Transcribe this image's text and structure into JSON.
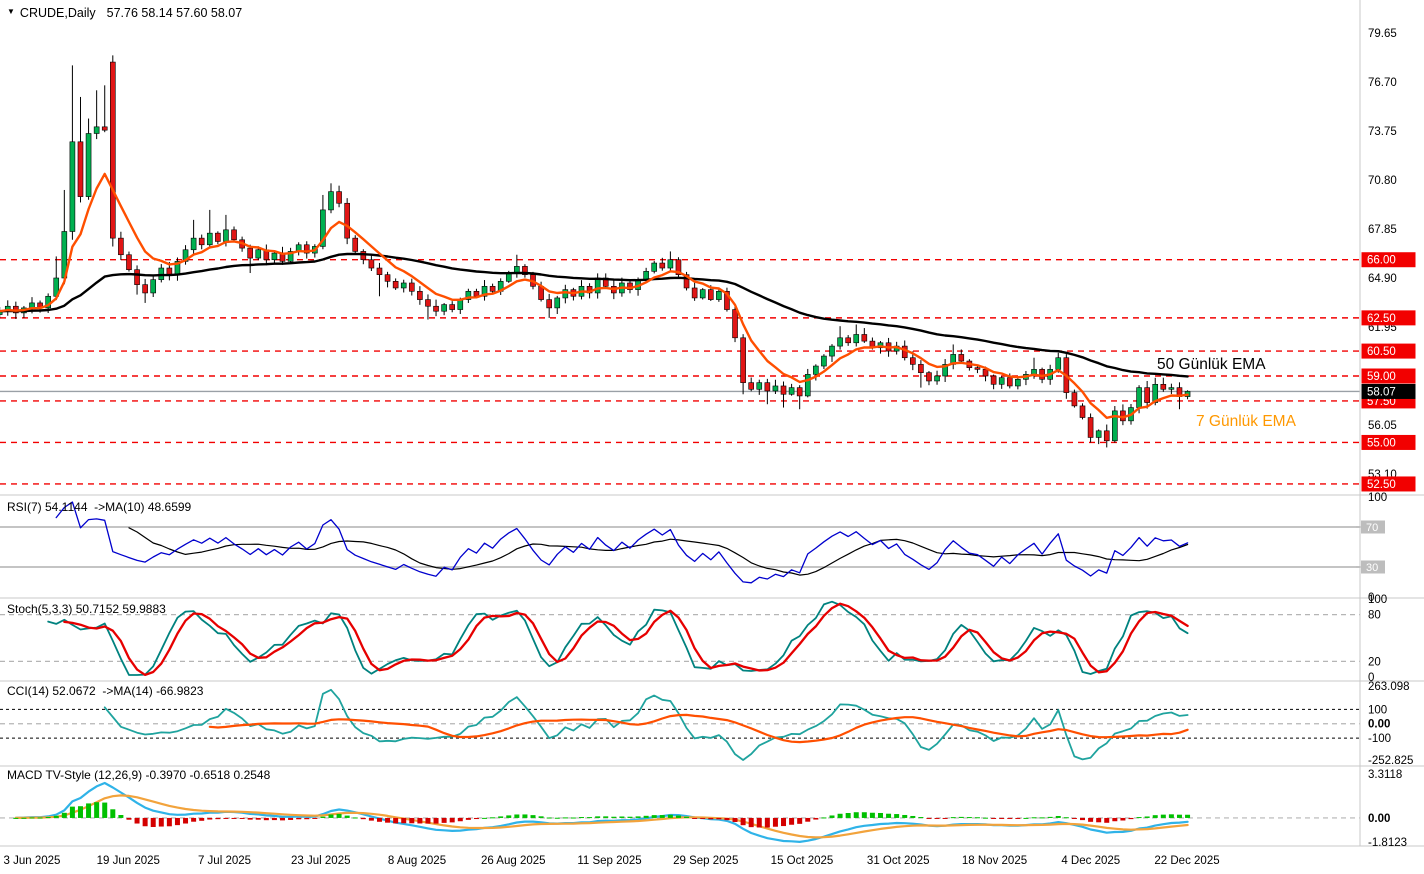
{
  "window": {
    "title_symbol": "CRUDE,Daily",
    "title_ohlc": "57.76 58.14 57.60 58.07"
  },
  "headers": {
    "rsi": "RSI(7) 54.1144  ->MA(10) 48.6599",
    "stoch": "Stoch(5,3,3) 50.7152 59.9883",
    "cci": "CCI(14) 52.0672  ->MA(14) -66.9823",
    "macd": "MACD TV-Style (12,26,9) -0.3970 -0.6518 0.2548"
  },
  "overlay_labels": {
    "ema50": "50 Günlük EMA",
    "ema7": "7 Günlük EMA"
  },
  "colors": {
    "background": "#ffffff",
    "bull_candle": "#00b050",
    "bear_candle": "#e01515",
    "candle_outline": "#000000",
    "ema7": "#ff4f00",
    "ema50": "#000000",
    "level_line": "#f20000",
    "bid_line": "#9aa0a6",
    "axis_badge_red": "#f20000",
    "axis_badge_black": "#000000",
    "axis_badge_gray": "#bdbdbd",
    "rsi_line": "#0000cd",
    "rsi_ma": "#000000",
    "stoch_k": "#00827f",
    "stoch_d": "#e60000",
    "cci_line": "#1fa39e",
    "cci_ma": "#ff4f00",
    "macd_line": "#2fb3e8",
    "macd_signal": "#f2a33c",
    "hist_up": "#00c000",
    "hist_down": "#d40000",
    "separator": "#c8c8c8",
    "guide_gray": "#c4c4c4",
    "guide_dash": "#b5b5b5",
    "text": "#000000"
  },
  "chart_data": {
    "type": "candlestick",
    "symbol": "CRUDE",
    "timeframe": "Daily",
    "last_candle_ohlc": [
      57.76,
      58.14,
      57.6,
      58.07
    ],
    "price_axis": {
      "plain_ticks": [
        79.65,
        76.7,
        73.75,
        70.8,
        67.85,
        64.9,
        61.95,
        56.05,
        53.1
      ],
      "red_level_ticks": [
        66.0,
        62.5,
        60.5,
        59.0,
        57.5,
        55.0,
        52.5
      ],
      "bid_tick": 58.07
    },
    "x_axis_dates": [
      "3 Jun 2025",
      "19 Jun 2025",
      "7 Jul 2025",
      "23 Jul 2025",
      "8 Aug 2025",
      "26 Aug 2025",
      "11 Sep 2025",
      "29 Sep 2025",
      "15 Oct 2025",
      "31 Oct 2025",
      "18 Nov 2025",
      "4 Dec 2025",
      "22 Dec 2025"
    ],
    "overlays": [
      {
        "label": "50 Günlük EMA",
        "period": 50,
        "color": "#000000"
      },
      {
        "label": "7 Günlük EMA",
        "period": 7,
        "color": "#ff4f00"
      }
    ],
    "candles": {
      "closes": [
        62.9,
        63.2,
        62.8,
        63.1,
        63.4,
        63.1,
        63.8,
        64.9,
        67.7,
        73.1,
        69.8,
        73.6,
        74.0,
        73.8,
        67.3,
        66.3,
        65.4,
        64.5,
        64.0,
        64.8,
        65.5,
        65.1,
        65.9,
        66.6,
        67.3,
        66.9,
        67.6,
        67.1,
        67.8,
        67.2,
        66.7,
        66.1,
        66.6,
        66.0,
        66.4,
        65.9,
        66.5,
        66.9,
        66.4,
        66.8,
        69.0,
        70.1,
        69.4,
        67.3,
        66.5,
        66.0,
        65.5,
        65.1,
        64.7,
        64.3,
        64.6,
        64.1,
        63.6,
        63.2,
        62.9,
        63.3,
        63.0,
        63.6,
        64.1,
        63.8,
        64.4,
        64.1,
        64.7,
        65.2,
        65.6,
        65.1,
        64.4,
        63.6,
        63.1,
        63.7,
        64.2,
        63.8,
        64.4,
        64.0,
        64.9,
        64.4,
        64.0,
        64.6,
        64.2,
        64.8,
        65.3,
        65.8,
        65.5,
        66.0,
        65.1,
        64.3,
        63.7,
        64.2,
        63.6,
        64.1,
        63.0,
        61.3,
        58.6,
        58.2,
        58.6,
        58.1,
        58.4,
        57.9,
        58.3,
        57.8,
        59.1,
        59.6,
        60.2,
        60.8,
        61.3,
        61.0,
        61.5,
        61.1,
        60.7,
        61.0,
        60.5,
        60.8,
        60.1,
        59.7,
        59.2,
        58.7,
        59.0,
        59.7,
        60.3,
        59.9,
        59.5,
        59.4,
        59.0,
        58.5,
        58.9,
        58.4,
        58.8,
        59.1,
        59.4,
        58.8,
        59.4,
        60.1,
        58.0,
        57.2,
        56.5,
        55.3,
        55.7,
        55.1,
        56.9,
        56.3,
        57.1,
        58.3,
        57.4,
        58.5,
        58.2,
        58.3,
        57.76,
        58.07
      ],
      "open_overrides": {
        "0": 62.7,
        "14": 77.9
      },
      "high_overrides": {
        "7": 66.2,
        "8": 70.2,
        "9": 77.7,
        "10": 75.8,
        "11": 74.5,
        "12": 76.2,
        "13": 76.5,
        "14": 78.3,
        "24": 68.4,
        "26": 69.0,
        "28": 68.7,
        "40": 69.9,
        "41": 70.6,
        "64": 66.3,
        "83": 66.5,
        "104": 62.0,
        "106": 62.1,
        "118": 60.9,
        "128": 60.1,
        "131": 60.4,
        "144": 58.9,
        "147": 58.14
      },
      "low_overrides": {
        "9": 67.2,
        "14": 66.8,
        "17": 63.9,
        "18": 63.4,
        "31": 65.2,
        "47": 63.8,
        "53": 62.4,
        "68": 62.5,
        "92": 57.9,
        "95": 57.3,
        "97": 57.1,
        "99": 57.0,
        "114": 58.3,
        "135": 55.0,
        "136": 54.9,
        "137": 54.7,
        "146": 57.0,
        "147": 57.6
      }
    },
    "indicators": {
      "rsi": {
        "name": "RSI",
        "period": 7,
        "value": 54.1144,
        "ma_period": 10,
        "ma_value": 48.6599,
        "range": [
          0,
          100
        ],
        "ticks": [
          {
            "label": "100",
            "v": 100,
            "style": "plain"
          },
          {
            "label": "70",
            "v": 70,
            "style": "gray-badge"
          },
          {
            "label": "30",
            "v": 30,
            "style": "gray-badge"
          },
          {
            "label": "0",
            "v": 0,
            "style": "plain"
          }
        ],
        "guides": [
          {
            "v": 70,
            "style": "solid-gray"
          },
          {
            "v": 30,
            "style": "solid-gray"
          }
        ]
      },
      "stoch": {
        "name": "Stoch",
        "params": "5,3,3",
        "k_value": 50.7152,
        "d_value": 59.9883,
        "range": [
          0,
          100
        ],
        "ticks": [
          {
            "label": "100",
            "v": 100,
            "style": "plain"
          },
          {
            "label": "80",
            "v": 80,
            "style": "plain"
          },
          {
            "label": "20",
            "v": 20,
            "style": "plain"
          },
          {
            "label": "0",
            "v": 0,
            "style": "plain"
          }
        ],
        "guides": [
          {
            "v": 80,
            "style": "dash-gray"
          },
          {
            "v": 20,
            "style": "dash-gray"
          }
        ]
      },
      "cci": {
        "name": "CCI",
        "period": 14,
        "value": 52.0672,
        "ma_period": 14,
        "ma_value": -66.9823,
        "range": [
          -252.825,
          263.098
        ],
        "ticks": [
          {
            "label": "263.098",
            "v": 263.098,
            "style": "plain"
          },
          {
            "label": "100",
            "v": 100,
            "style": "plain"
          },
          {
            "label": "0.00",
            "v": 0,
            "style": "bold"
          },
          {
            "label": "-100",
            "v": -100,
            "style": "plain"
          },
          {
            "label": "-252.825",
            "v": -252.825,
            "style": "plain"
          }
        ],
        "guides": [
          {
            "v": 100,
            "style": "dash-black"
          },
          {
            "v": 0,
            "style": "dash-gray"
          },
          {
            "v": -100,
            "style": "dash-black"
          }
        ]
      },
      "macd": {
        "name": "MACD TV-Style",
        "params": "12,26,9",
        "macd_value": -0.397,
        "signal_value": -0.6518,
        "hist_value": 0.2548,
        "range": [
          -1.8123,
          3.3118
        ],
        "ticks": [
          {
            "label": "3.3118",
            "v": 3.3118,
            "style": "plain"
          },
          {
            "label": "0.00",
            "v": 0,
            "style": "bold"
          },
          {
            "label": "-1.8123",
            "v": -1.8123,
            "style": "plain"
          }
        ],
        "guides": [
          {
            "v": 0,
            "style": "dash-gray"
          }
        ]
      }
    }
  }
}
